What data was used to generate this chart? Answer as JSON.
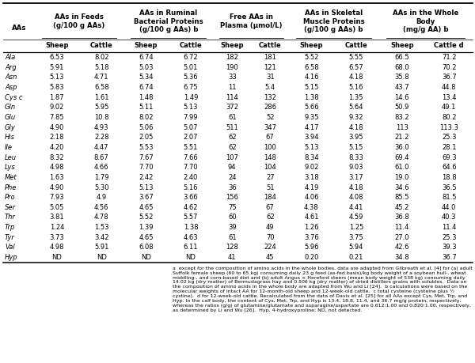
{
  "col_headers": [
    "AAs in Feeds\n(g/100 g AAs)",
    "AAs in Ruminal\nBacterial Proteins\n(g/100 g AAs) b",
    "Free AAs in\nPlasma (μmol/L)",
    "AAs in Skeletal\nMuscle Proteins\n(g/100 g AAs) b",
    "AAs in the Whole\nBody\n(mg/g AA) b"
  ],
  "sub_headers": [
    "Sheep",
    "Cattle",
    "Sheep",
    "Cattle",
    "Sheep",
    "Cattle",
    "Sheep",
    "Cattle",
    "Sheep",
    "Cattle d"
  ],
  "rows": [
    [
      "Ala",
      "6.53",
      "8.02",
      "6.74",
      "6.72",
      "182",
      "181",
      "5.52",
      "5.55",
      "66.5",
      "71.2"
    ],
    [
      "Arg",
      "5.91",
      "5.18",
      "5.03",
      "5.01",
      "190",
      "121",
      "6.58",
      "6.57",
      "68.0",
      "70.2"
    ],
    [
      "Asn",
      "5.13",
      "4.71",
      "5.34",
      "5.36",
      "33",
      "31",
      "4.16",
      "4.18",
      "35.8",
      "36.7"
    ],
    [
      "Asp",
      "5.83",
      "6.58",
      "6.74",
      "6.75",
      "11",
      "5.4",
      "5.15",
      "5.16",
      "43.7",
      "44.8"
    ],
    [
      "Cys c",
      "1.87",
      "1.61",
      "1.48",
      "1.49",
      "114",
      "132",
      "1.38",
      "1.35",
      "14.6",
      "13.4"
    ],
    [
      "Gln",
      "9.02",
      "5.95",
      "5.11",
      "5.13",
      "372",
      "286",
      "5.66",
      "5.64",
      "50.9",
      "49.1"
    ],
    [
      "Glu",
      "7.85",
      "10.8",
      "8.02",
      "7.99",
      "61",
      "52",
      "9.35",
      "9.32",
      "83.2",
      "80.2"
    ],
    [
      "Gly",
      "4.90",
      "4.93",
      "5.06",
      "5.07",
      "511",
      "347",
      "4.17",
      "4.18",
      "113",
      "113.3"
    ],
    [
      "His",
      "2.18",
      "2.28",
      "2.05",
      "2.07",
      "62",
      "67",
      "3.94",
      "3.95",
      "21.2",
      "25.3"
    ],
    [
      "Ile",
      "4.20",
      "4.47",
      "5.53",
      "5.51",
      "62",
      "100",
      "5.13",
      "5.15",
      "36.0",
      "28.1"
    ],
    [
      "Leu",
      "8.32",
      "8.67",
      "7.67",
      "7.66",
      "107",
      "148",
      "8.34",
      "8.33",
      "69.4",
      "69.3"
    ],
    [
      "Lys",
      "4.98",
      "4.66",
      "7.70",
      "7.70",
      "94",
      "104",
      "9.02",
      "9.03",
      "61.0",
      "64.6"
    ],
    [
      "Met",
      "1.63",
      "1.79",
      "2.42",
      "2.40",
      "24",
      "27",
      "3.18",
      "3.17",
      "19.0",
      "18.8"
    ],
    [
      "Phe",
      "4.90",
      "5.30",
      "5.13",
      "5.16",
      "36",
      "51",
      "4.19",
      "4.18",
      "34.6",
      "36.5"
    ],
    [
      "Pro",
      "7.93",
      "4.9",
      "3.67",
      "3.66",
      "156",
      "184",
      "4.06",
      "4.08",
      "85.5",
      "81.5"
    ],
    [
      "Ser",
      "5.05",
      "4.56",
      "4.65",
      "4.62",
      "75",
      "67",
      "4.38",
      "4.41",
      "45.2",
      "44.0"
    ],
    [
      "Thr",
      "3.81",
      "4.78",
      "5.52",
      "5.57",
      "60",
      "62",
      "4.61",
      "4.59",
      "36.8",
      "40.3"
    ],
    [
      "Trp",
      "1.24",
      "1.53",
      "1.39",
      "1.38",
      "39",
      "49",
      "1.26",
      "1.25",
      "11.4",
      "11.4"
    ],
    [
      "Tyr",
      "3.73",
      "3.42",
      "4.65",
      "4.63",
      "61",
      "70",
      "3.76",
      "3.75",
      "27.0",
      "25.3"
    ],
    [
      "Val",
      "4.98",
      "5.91",
      "6.08",
      "6.11",
      "128",
      "224",
      "5.96",
      "5.94",
      "42.6",
      "39.3"
    ],
    [
      "Hyp",
      "ND",
      "ND",
      "ND",
      "ND",
      "41",
      "45",
      "0.20",
      "0.21",
      "34.8",
      "36.7"
    ]
  ],
  "footnote_indent": "a  except for the composition of amino acids in the whole bodies, data are adapted from Gilbreath et al. [4] for (a) adult Suffolk female sheep (60 to 65 kg) consuming daily 23 g feed (as-fed basis)/kg body weight of a soybean hull-, wheat middling-, and corn-based diet and (b) adult Angus × Hereford steers (mean body weight of 538 kg) consuming daily 14.02 kg (dry matter) of Bermudagrass hay and 0.506 kg (dry matter) of dried distillers grains with solubles.  Data on the composition of amino acids in the whole body are adapted from Wu and Li [24].  b calculations were based on the molecular weights of intact AA for 12-month-old sheep and 12-week-old cattle.  c total cysteine (cysteine plus ½ cystine).  d for 12-week-old cattle. Recalculated from the data of Davis et al. [25] for all AAs except Cys, Met, Trp, and Hyp. In the calf body, the content of Cys, Met, Trp, and Hyp is 13.4, 18.8, 11.4, and 36.7 mg/g protein, respectively, whereas the ratios (g/g) of glutamine/glutamate and asparagine/aspartate are 0.612:1.00 and 0.820:1.00, respectively, as determined by Li and Wu [26].  Hyp, 4-hydroxyproline; ND, not detected.",
  "table_bg": "#ffffff",
  "header_fontsize": 6.2,
  "subheader_fontsize": 6.0,
  "data_fontsize": 6.0,
  "footnote_fontsize": 4.5
}
